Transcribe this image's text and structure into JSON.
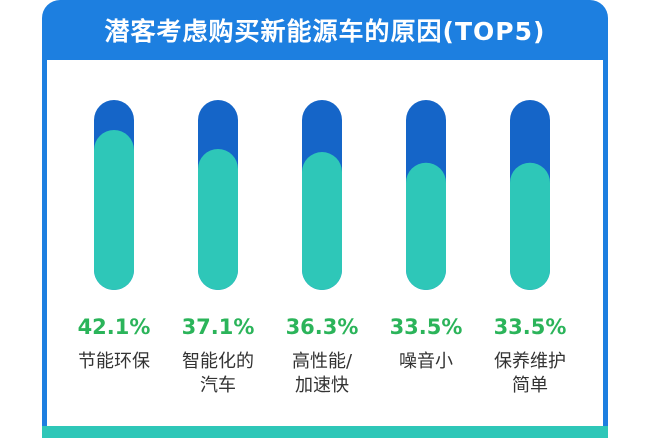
{
  "title": "潜客考虑购买新能源车的原因(TOP5)",
  "colors": {
    "frame": "#1d7fe0",
    "track": "#1565c8",
    "fill": "#2ec7b8",
    "percent_text": "#2bb45a",
    "label_text": "#333333"
  },
  "chart_data": {
    "type": "bar",
    "title": "潜客考虑购买新能源车的原因(TOP5)",
    "categories": [
      "节能环保",
      "智能化的汽车",
      "高性能/加速快",
      "噪音小",
      "保养维护简单"
    ],
    "label_lines": [
      [
        "节能环保"
      ],
      [
        "智能化的",
        "汽车"
      ],
      [
        "高性能/",
        "加速快"
      ],
      [
        "噪音小"
      ],
      [
        "保养维护",
        "简单"
      ]
    ],
    "values": [
      42.1,
      37.1,
      36.3,
      33.5,
      33.5
    ],
    "value_labels": [
      "42.1%",
      "37.1%",
      "36.3%",
      "33.5%",
      "33.5%"
    ],
    "ylim": [
      0,
      50
    ],
    "xlabel": "",
    "ylabel": "",
    "grid": false,
    "legend": "none"
  }
}
